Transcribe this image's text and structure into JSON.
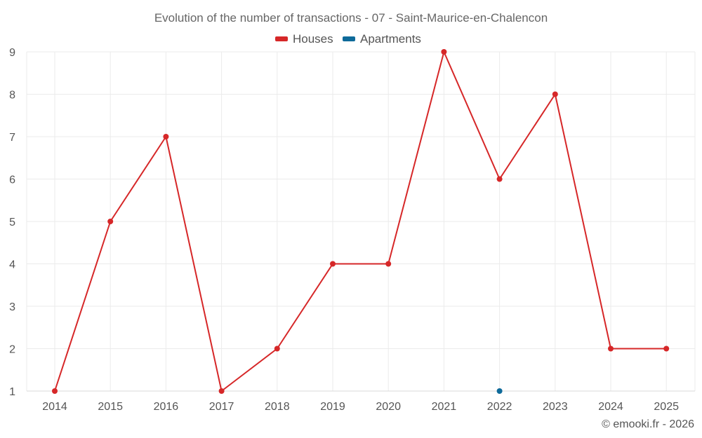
{
  "chart_data": {
    "type": "line",
    "title": "Evolution of the number of transactions - 07 - Saint-Maurice-en-Chalencon",
    "categories": [
      "2014",
      "2015",
      "2016",
      "2017",
      "2018",
      "2019",
      "2020",
      "2021",
      "2022",
      "2023",
      "2024",
      "2025"
    ],
    "series": [
      {
        "name": "Houses",
        "color": "#d62728",
        "values": [
          1,
          5,
          7,
          1,
          2,
          4,
          4,
          9,
          6,
          8,
          2,
          2
        ]
      },
      {
        "name": "Apartments",
        "color": "#0e6a9a",
        "values": [
          null,
          null,
          null,
          null,
          null,
          null,
          null,
          null,
          1,
          null,
          null,
          null
        ]
      }
    ],
    "ylim": [
      1,
      9
    ],
    "yticks": [
      "1",
      "2",
      "3",
      "4",
      "5",
      "6",
      "7",
      "8",
      "9"
    ],
    "grid": true,
    "legend": "top-center",
    "xlabel": "",
    "ylabel": ""
  },
  "credit": "© emooki.fr - 2026"
}
